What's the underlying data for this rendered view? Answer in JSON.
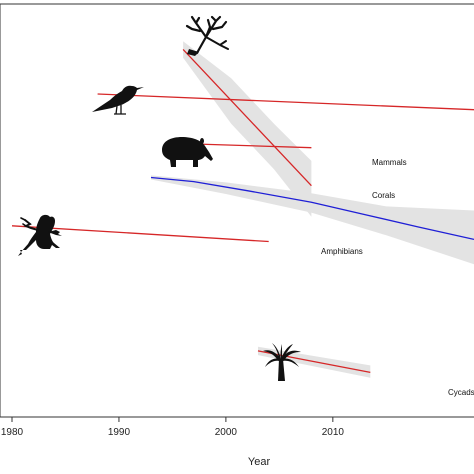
{
  "chart_data": {
    "type": "line",
    "xlabel": "Year",
    "ylabel": "",
    "title": "",
    "xlim": [
      1979.7,
      2023.2
    ],
    "x_ticks": [
      1980,
      1990,
      2000,
      2010
    ],
    "grid": false,
    "series": [
      {
        "name": "",
        "color": "#d62728",
        "icon": "bird-icon",
        "points": [
          [
            1988,
            0.782
          ],
          [
            2023.2,
            0.744
          ]
        ],
        "band": null
      },
      {
        "name": "Mammals",
        "color": "#d62728",
        "icon": "tapir-icon",
        "points": [
          [
            1996,
            0.662
          ],
          [
            2008,
            0.652
          ]
        ],
        "band": null
      },
      {
        "name": "Corals",
        "color": "#d62728",
        "icon": "coral-icon",
        "points": [
          [
            1996,
            0.89
          ],
          [
            2008,
            0.56
          ]
        ],
        "band": {
          "upper": [
            [
              1996,
              0.91
            ],
            [
              2000.5,
              0.82
            ],
            [
              2004.5,
              0.71
            ],
            [
              2008,
              0.62
            ]
          ],
          "lower": [
            [
              2008,
              0.485
            ],
            [
              2004.5,
              0.6
            ],
            [
              2000.5,
              0.71
            ],
            [
              1996,
              0.87
            ]
          ]
        }
      },
      {
        "name": "",
        "color": "#1f1fd6",
        "icon": null,
        "points": [
          [
            1993,
            0.58
          ],
          [
            1997,
            0.57
          ],
          [
            2002,
            0.548
          ],
          [
            2008,
            0.52
          ],
          [
            2013,
            0.49
          ],
          [
            2018,
            0.46
          ],
          [
            2023.2,
            0.43
          ]
        ],
        "band": {
          "upper": [
            [
              1993,
              0.585
            ],
            [
              2000,
              0.568
            ],
            [
              2008,
              0.542
            ],
            [
              2015,
              0.51
            ],
            [
              2023.2,
              0.5
            ]
          ],
          "lower": [
            [
              2023.2,
              0.37
            ],
            [
              2015,
              0.44
            ],
            [
              2008,
              0.495
            ],
            [
              2000,
              0.54
            ],
            [
              1993,
              0.575
            ]
          ]
        }
      },
      {
        "name": "Amphibians",
        "color": "#d62728",
        "icon": "frog-icon",
        "points": [
          [
            1980,
            0.463
          ],
          [
            2004,
            0.425
          ]
        ],
        "band": null
      },
      {
        "name": "Cycads",
        "color": "#d62728",
        "icon": "palm-icon",
        "points": [
          [
            2003,
            0.16
          ],
          [
            2013.5,
            0.108
          ]
        ],
        "band": {
          "upper": [
            [
              2003,
              0.17
            ],
            [
              2013.5,
              0.125
            ]
          ],
          "lower": [
            [
              2013.5,
              0.095
            ],
            [
              2003,
              0.15
            ]
          ]
        }
      }
    ],
    "band_color": "#e3e3e3",
    "series_label_color": "#111111"
  }
}
